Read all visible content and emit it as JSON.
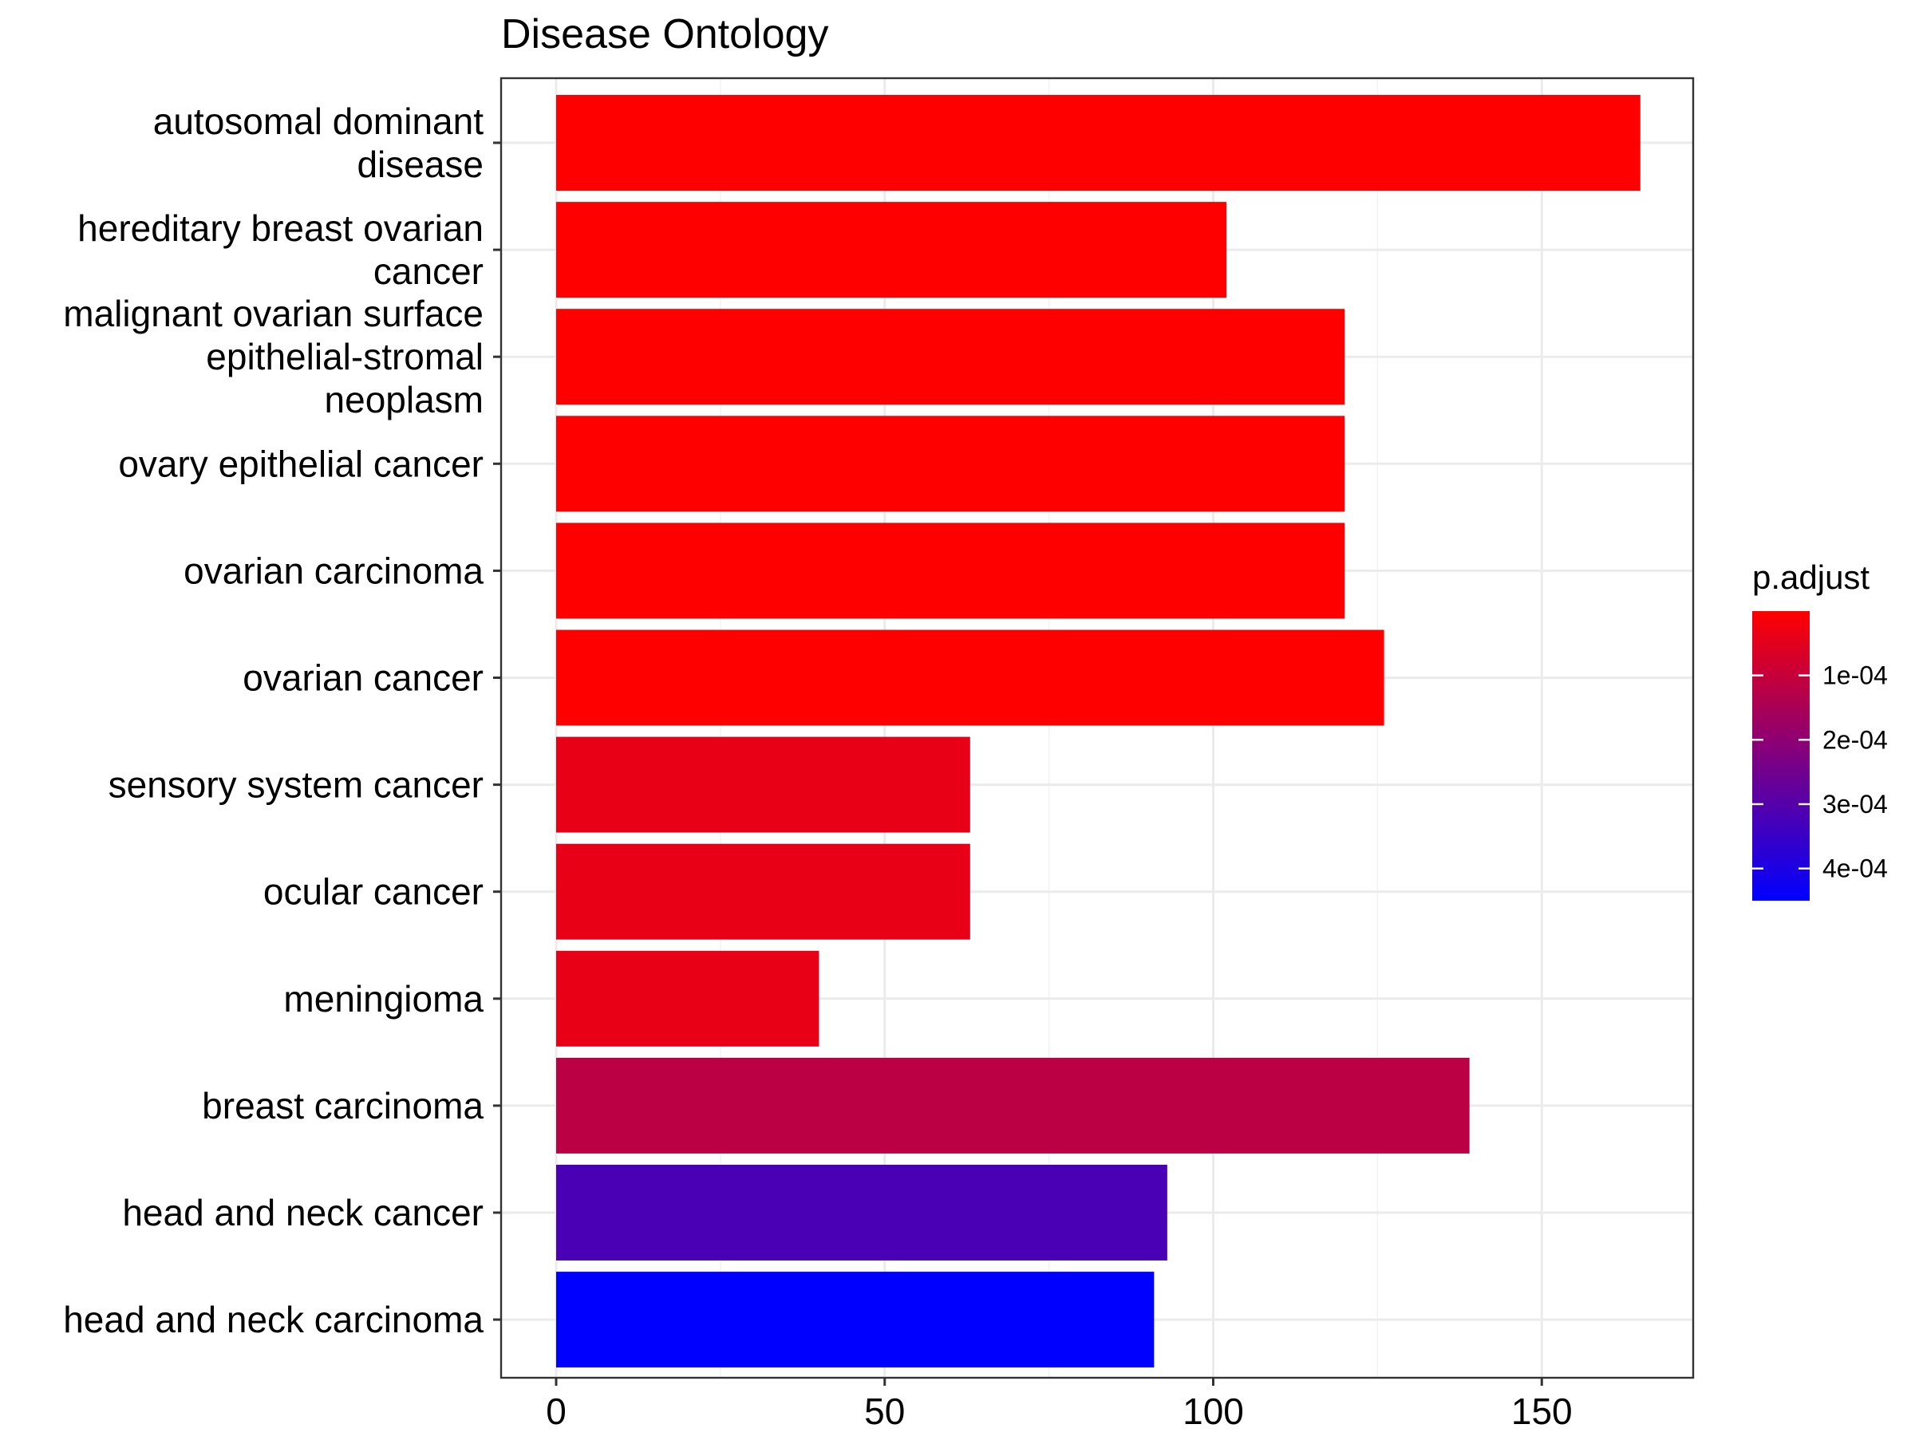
{
  "chart_data": {
    "type": "bar",
    "orientation": "horizontal",
    "title": "Disease Ontology",
    "xlabel": "",
    "ylabel": "",
    "xlim": [
      0,
      165
    ],
    "x_ticks": [
      0,
      50,
      100,
      150
    ],
    "x_tick_labels": [
      "0",
      "50",
      "100",
      "150"
    ],
    "grid": true,
    "categories": [
      [
        "autosomal dominant",
        "disease"
      ],
      [
        "hereditary breast ovarian",
        "cancer"
      ],
      [
        "malignant ovarian surface",
        "epithelial-stromal",
        "neoplasm"
      ],
      [
        "ovary epithelial cancer"
      ],
      [
        "ovarian carcinoma"
      ],
      [
        "ovarian cancer"
      ],
      [
        "sensory system cancer"
      ],
      [
        "ocular cancer"
      ],
      [
        "meningioma"
      ],
      [
        "breast carcinoma"
      ],
      [
        "head and neck cancer"
      ],
      [
        "head and neck carcinoma"
      ]
    ],
    "values": [
      165,
      102,
      120,
      120,
      120,
      126,
      63,
      63,
      40,
      139,
      93,
      91
    ],
    "p_adjust": [
      1e-07,
      1e-07,
      1e-07,
      1e-07,
      1e-07,
      1e-07,
      4e-05,
      4e-05,
      4e-05,
      0.00012,
      0.00032,
      0.00045
    ],
    "legend": {
      "title": "p.adjust",
      "placement": "right",
      "range": [
        1e-07,
        0.00045
      ],
      "ticks": [
        0.0001,
        0.0002,
        0.0003,
        0.0004
      ],
      "tick_labels": [
        "1e-04",
        "2e-04",
        "3e-04",
        "4e-04"
      ],
      "color_low": "#FF0000",
      "color_high": "#0000FF"
    }
  }
}
